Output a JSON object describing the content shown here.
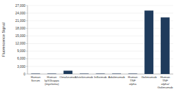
{
  "chart_data": {
    "type": "bar",
    "y_label": "Fluorescence Signal",
    "categories": [
      "Human Serum",
      "Human IgG1kappa (myeloma)",
      "Omalizumab",
      "Ustekinumab",
      "Infliximab",
      "Adalimumab",
      "Human TNF alpha",
      "Golimumab",
      "Human TNF alpha/ Golimumab"
    ],
    "values": [
      150,
      150,
      1300,
      150,
      150,
      150,
      150,
      25000,
      22300
    ],
    "color": "#1f3b5c",
    "ylim": [
      0,
      27000
    ],
    "yticks": [
      0,
      {
        "value": 3000,
        "label": "3,000"
      },
      {
        "value": 6000,
        "label": "6,000"
      },
      {
        "value": 9000,
        "label": "9,000"
      },
      {
        "value": 12000,
        "label": "12,000"
      },
      {
        "value": 15000,
        "label": "15,000"
      },
      {
        "value": 18000,
        "label": "18,000"
      },
      {
        "value": 21000,
        "label": "21,000"
      },
      {
        "value": 24000,
        "label": "24,000"
      },
      {
        "value": 27000,
        "label": "27,000"
      }
    ],
    "grid": true
  }
}
